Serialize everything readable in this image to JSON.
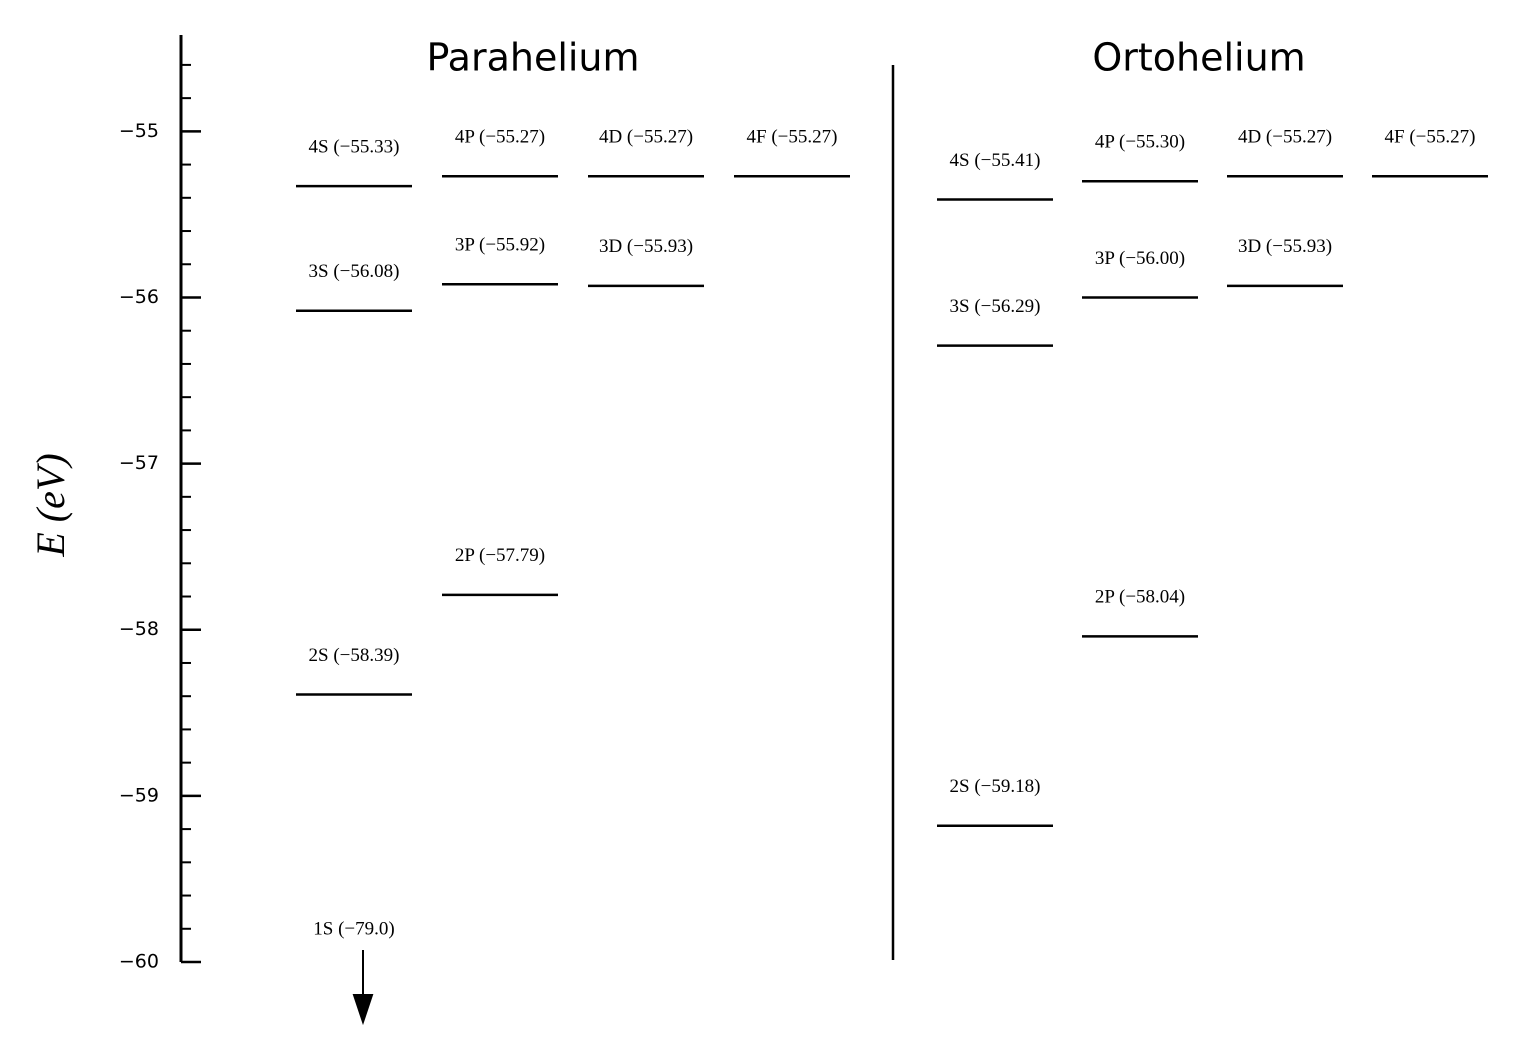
{
  "chart_data": {
    "type": "levels",
    "ylabel": "E (eV)",
    "ylim": [
      -60,
      -54.42
    ],
    "yticks": [
      {
        "value": -55,
        "label": "−55"
      },
      {
        "value": -56,
        "label": "−56"
      },
      {
        "value": -57,
        "label": "−57"
      },
      {
        "value": -58,
        "label": "−58"
      },
      {
        "value": -59,
        "label": "−59"
      },
      {
        "value": -60,
        "label": "−60"
      }
    ],
    "minor_yticks": [
      -54.6,
      -54.8,
      -55.2,
      -55.4,
      -55.6,
      -55.8,
      -56.2,
      -56.4,
      -56.6,
      -56.8,
      -57.2,
      -57.4,
      -57.6,
      -57.8,
      -58.2,
      -58.4,
      -58.6,
      -58.8,
      -59.2,
      -59.4,
      -59.6,
      -59.8
    ],
    "series": [
      {
        "name": "Parahelium",
        "columns": [
          [
            {
              "label": "4S (−55.33)",
              "value": -55.33
            },
            {
              "label": "3S (−56.08)",
              "value": -56.08
            },
            {
              "label": "2S (−58.39)",
              "value": -58.39
            },
            {
              "label": "1S (−79.0)",
              "value": -79.0
            }
          ],
          [
            {
              "label": "4P (−55.27)",
              "value": -55.27
            },
            {
              "label": "3P (−55.92)",
              "value": -55.92
            },
            {
              "label": "2P (−57.79)",
              "value": -57.79
            }
          ],
          [
            {
              "label": "4D (−55.27)",
              "value": -55.27
            },
            {
              "label": "3D (−55.93)",
              "value": -55.93
            }
          ],
          [
            {
              "label": "4F (−55.27)",
              "value": -55.27
            }
          ]
        ]
      },
      {
        "name": "Ortohelium",
        "columns": [
          [
            {
              "label": "4S (−55.41)",
              "value": -55.41
            },
            {
              "label": "3S (−56.29)",
              "value": -56.29
            },
            {
              "label": "2S (−59.18)",
              "value": -59.18
            }
          ],
          [
            {
              "label": "4P (−55.30)",
              "value": -55.3
            },
            {
              "label": "3P (−56.00)",
              "value": -56.0
            },
            {
              "label": "2P (−58.04)",
              "value": -58.04
            }
          ],
          [
            {
              "label": "4D (−55.27)",
              "value": -55.27
            },
            {
              "label": "3D (−55.93)",
              "value": -55.93
            }
          ],
          [
            {
              "label": "4F (−55.27)",
              "value": -55.27
            }
          ]
        ]
      }
    ]
  }
}
